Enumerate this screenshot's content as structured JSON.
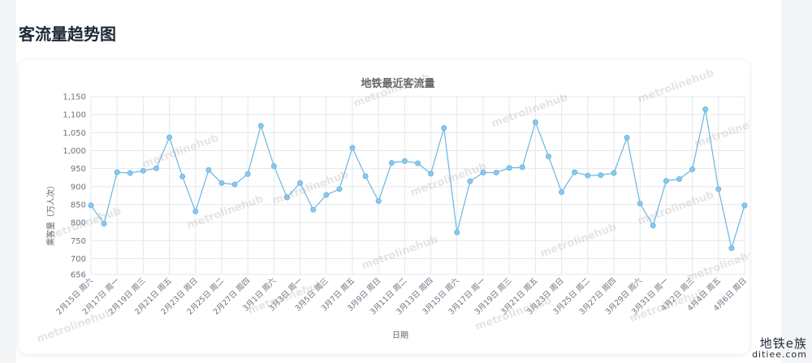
{
  "page": {
    "title": "客流量趋势图"
  },
  "watermark_text": "metrolinehub",
  "corner_logo": {
    "name": "地铁e族",
    "site": "ditiee.com"
  },
  "colors": {
    "line": "#6bb6e3",
    "point": "#8cc8ee",
    "grid": "#e5e7eb",
    "axis_text": "#6b7280"
  },
  "chart_data": {
    "type": "line",
    "title": "地铁最近客流量",
    "xlabel": "日期",
    "ylabel": "乘客量（万人次）",
    "ylim": [
      656,
      1150
    ],
    "yticks": [
      1150,
      1100,
      1050,
      1000,
      950,
      900,
      850,
      800,
      750,
      700,
      656
    ],
    "ytick_labels": [
      "1,150",
      "1,100",
      "1,050",
      "1,000",
      "950",
      "900",
      "850",
      "800",
      "750",
      "700",
      "656"
    ],
    "grid": true,
    "x_tick_labels": [
      "2月15日 周六",
      "2月17日 周一",
      "2月19日 周三",
      "2月21日 周五",
      "2月23日 周日",
      "2月25日 周二",
      "2月27日 周四",
      "3月1日 周六",
      "3月3日 周一",
      "3月5日 周三",
      "3月7日 周五",
      "3月9日 周日",
      "3月11日 周二",
      "3月13日 周四",
      "3月15日 周六",
      "3月17日 周一",
      "3月19日 周三",
      "3月21日 周五",
      "3月23日 周日",
      "3月25日 周二",
      "3月27日 周四",
      "3月29日 周六",
      "3月31日 周一",
      "4月2日 周三",
      "4月4日 周五",
      "4月6日 周日"
    ],
    "x": [
      "2月15日 周六",
      "2月16日 周日",
      "2月17日 周一",
      "2月18日 周二",
      "2月19日 周三",
      "2月20日 周四",
      "2月21日 周五",
      "2月22日 周六",
      "2月23日 周日",
      "2月24日 周一",
      "2月25日 周二",
      "2月26日 周三",
      "2月27日 周四",
      "2月28日 周五",
      "3月1日 周六",
      "3月2日 周日",
      "3月3日 周一",
      "3月4日 周二",
      "3月5日 周三",
      "3月6日 周四",
      "3月7日 周五",
      "3月8日 周六",
      "3月9日 周日",
      "3月10日 周一",
      "3月11日 周二",
      "3月12日 周三",
      "3月13日 周四",
      "3月14日 周五",
      "3月15日 周六",
      "3月16日 周日",
      "3月17日 周一",
      "3月18日 周二",
      "3月19日 周三",
      "3月20日 周四",
      "3月21日 周五",
      "3月22日 周六",
      "3月23日 周日",
      "3月24日 周一",
      "3月25日 周二",
      "3月26日 周三",
      "3月27日 周四",
      "3月28日 周五",
      "3月29日 周六",
      "3月30日 周日",
      "3月31日 周一",
      "4月1日 周二",
      "4月2日 周三",
      "4月3日 周四",
      "4月4日 周五",
      "4月5日 周六",
      "4月6日 周日"
    ],
    "values": [
      848,
      797,
      940,
      938,
      944,
      951,
      1037,
      928,
      831,
      946,
      910,
      906,
      935,
      1069,
      957,
      870,
      910,
      836,
      877,
      893,
      1008,
      929,
      860,
      966,
      971,
      965,
      936,
      1063,
      773,
      915,
      939,
      939,
      952,
      954,
      1079,
      984,
      885,
      940,
      931,
      932,
      938,
      1036,
      853,
      792,
      916,
      921,
      948,
      1115,
      893,
      729,
      848
    ]
  }
}
